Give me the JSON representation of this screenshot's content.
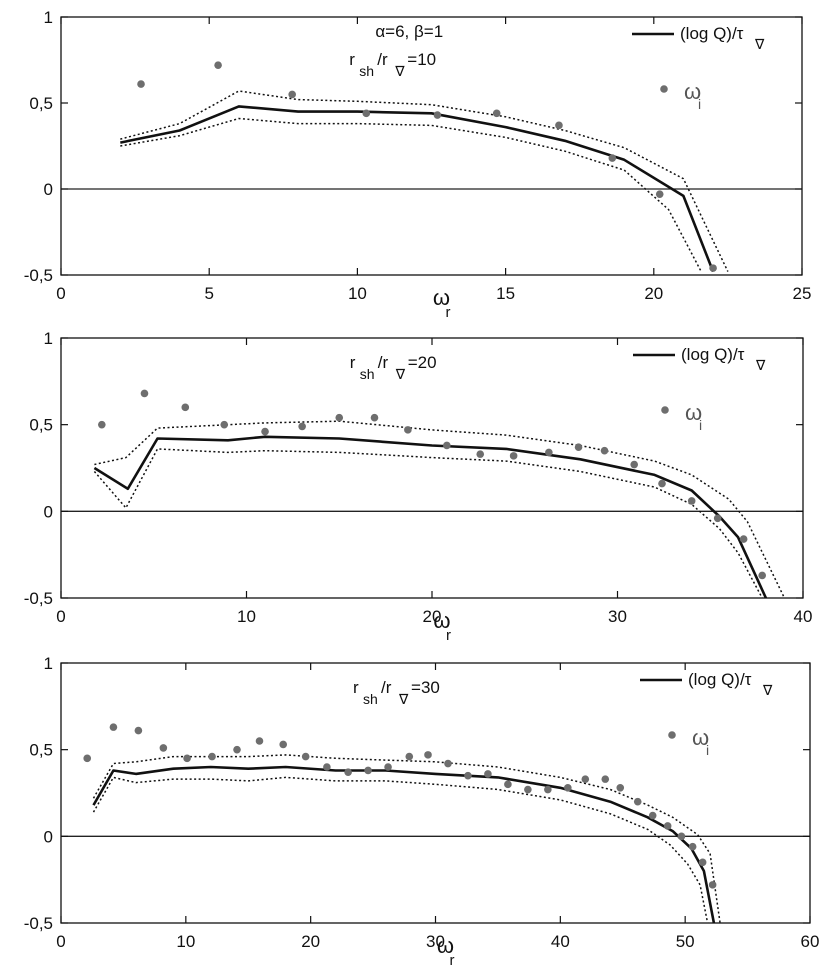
{
  "chart_data": [
    {
      "type": "line",
      "xlim": [
        0,
        25
      ],
      "ylim": [
        -0.5,
        1
      ],
      "xticks": [
        0,
        5,
        10,
        15,
        20,
        25
      ],
      "yticks": [
        -0.5,
        0,
        0.5,
        1
      ],
      "xtick_labels": [
        "0",
        "5",
        "10",
        "15",
        "20",
        "25"
      ],
      "ytick_labels": [
        "-0,5",
        "0",
        "0,5",
        "1"
      ],
      "xlabel": "ω",
      "xlabel_sub": "r",
      "annotations": [
        "α=6, β=1"
      ],
      "ratio_label": {
        "r1": "r",
        "s1": "sh",
        "r2": "/r",
        "s2": "∇",
        "value": "=10"
      },
      "legend": {
        "line_label": "(log Q)/τ",
        "line_sub": "∇",
        "marker_label": "ω",
        "marker_sub": "i"
      },
      "series": [
        {
          "name": "(log Q)/τ∇",
          "style": "solid",
          "x": [
            2,
            4,
            6,
            8,
            10,
            12.5,
            15,
            17,
            19,
            21,
            22
          ],
          "y": [
            0.27,
            0.34,
            0.48,
            0.45,
            0.45,
            0.44,
            0.36,
            0.28,
            0.17,
            -0.04,
            -0.48
          ]
        },
        {
          "name": "upper bound",
          "style": "dotted",
          "x": [
            2,
            4,
            6,
            8,
            10,
            12.5,
            15,
            17,
            19,
            21,
            22.5
          ],
          "y": [
            0.29,
            0.38,
            0.57,
            0.52,
            0.51,
            0.49,
            0.42,
            0.34,
            0.24,
            0.06,
            -0.48
          ]
        },
        {
          "name": "lower bound",
          "style": "dotted",
          "x": [
            2,
            4,
            6,
            8,
            10,
            12.5,
            15,
            17,
            19,
            20.5,
            21.6
          ],
          "y": [
            0.25,
            0.31,
            0.41,
            0.38,
            0.38,
            0.37,
            0.3,
            0.22,
            0.11,
            -0.12,
            -0.48
          ]
        },
        {
          "name": "ωi",
          "style": "markers",
          "x": [
            2.7,
            5.3,
            7.8,
            10.3,
            12.7,
            14.7,
            16.8,
            18.6,
            20.2,
            22
          ],
          "y": [
            0.61,
            0.72,
            0.55,
            0.44,
            0.43,
            0.44,
            0.37,
            0.18,
            -0.03,
            -0.46
          ]
        }
      ]
    },
    {
      "type": "line",
      "xlim": [
        0,
        40
      ],
      "ylim": [
        -0.5,
        1
      ],
      "xticks": [
        0,
        10,
        20,
        30,
        40
      ],
      "yticks": [
        -0.5,
        0,
        0.5,
        1
      ],
      "xtick_labels": [
        "0",
        "10",
        "20",
        "30",
        "40"
      ],
      "ytick_labels": [
        "-0,5",
        "0",
        "0,5",
        "1"
      ],
      "xlabel": "ω",
      "xlabel_sub": "r",
      "annotations": [],
      "ratio_label": {
        "r1": "r",
        "s1": "sh",
        "r2": "/r",
        "s2": "∇",
        "value": "=20"
      },
      "legend": {
        "line_label": "(log Q)/τ",
        "line_sub": "∇",
        "marker_label": "ω",
        "marker_sub": "i"
      },
      "series": [
        {
          "name": "(log Q)/τ∇",
          "style": "solid",
          "x": [
            1.8,
            3.6,
            5.2,
            9,
            11,
            15,
            20,
            24,
            28,
            32,
            34,
            35.5,
            36.5,
            38
          ],
          "y": [
            0.25,
            0.13,
            0.42,
            0.41,
            0.43,
            0.42,
            0.38,
            0.36,
            0.3,
            0.21,
            0.12,
            -0.03,
            -0.15,
            -0.5
          ]
        },
        {
          "name": "upper bound",
          "style": "dotted",
          "x": [
            1.8,
            3.5,
            5.2,
            9,
            11,
            15,
            20,
            24,
            28,
            32,
            34,
            36,
            37,
            39
          ],
          "y": [
            0.27,
            0.31,
            0.48,
            0.5,
            0.51,
            0.52,
            0.47,
            0.44,
            0.38,
            0.29,
            0.21,
            0.07,
            -0.06,
            -0.5
          ]
        },
        {
          "name": "lower bound",
          "style": "dotted",
          "x": [
            1.8,
            3.5,
            5.2,
            9,
            11,
            15,
            20,
            24,
            28,
            32,
            34,
            35.5,
            36.5,
            37.8
          ],
          "y": [
            0.23,
            0.02,
            0.36,
            0.34,
            0.35,
            0.34,
            0.31,
            0.29,
            0.23,
            0.14,
            0.04,
            -0.1,
            -0.24,
            -0.5
          ]
        },
        {
          "name": "ωi",
          "style": "markers",
          "x": [
            2.2,
            4.5,
            6.7,
            8.8,
            11,
            13,
            15,
            16.9,
            18.7,
            20.8,
            22.6,
            24.4,
            26.3,
            27.9,
            29.3,
            30.9,
            32.4,
            34,
            35.4,
            36.8,
            37.8
          ],
          "y": [
            0.5,
            0.68,
            0.6,
            0.5,
            0.46,
            0.49,
            0.54,
            0.54,
            0.47,
            0.38,
            0.33,
            0.32,
            0.34,
            0.37,
            0.35,
            0.27,
            0.16,
            0.06,
            -0.04,
            -0.16,
            -0.37
          ]
        }
      ]
    },
    {
      "type": "line",
      "xlim": [
        0,
        60
      ],
      "ylim": [
        -0.5,
        1
      ],
      "xticks": [
        0,
        10,
        20,
        30,
        40,
        50,
        60
      ],
      "yticks": [
        -0.5,
        0,
        0.5,
        1
      ],
      "xtick_labels": [
        "0",
        "10",
        "20",
        "30",
        "40",
        "50",
        "60"
      ],
      "ytick_labels": [
        "-0,5",
        "0",
        "0,5",
        "1"
      ],
      "xlabel": "ω",
      "xlabel_sub": "r",
      "annotations": [],
      "ratio_label": {
        "r1": "r",
        "s1": "sh",
        "r2": "/r",
        "s2": "∇",
        "value": "=30"
      },
      "legend": {
        "line_label": "(log Q)/τ",
        "line_sub": "∇",
        "marker_label": "ω",
        "marker_sub": "i"
      },
      "series": [
        {
          "name": "(log Q)/τ∇",
          "style": "solid",
          "x": [
            2.6,
            4.2,
            6,
            9,
            12,
            15,
            18,
            22,
            26,
            30,
            35,
            40,
            44,
            47,
            49,
            50.5,
            51.5,
            52.3
          ],
          "y": [
            0.18,
            0.38,
            0.36,
            0.39,
            0.4,
            0.39,
            0.4,
            0.38,
            0.38,
            0.36,
            0.34,
            0.28,
            0.2,
            0.11,
            0.03,
            -0.07,
            -0.2,
            -0.5
          ]
        },
        {
          "name": "upper bound",
          "style": "dotted",
          "x": [
            2.6,
            4.2,
            6,
            9,
            12,
            15,
            18,
            22,
            26,
            30,
            35,
            40,
            44,
            47,
            49,
            51,
            52,
            52.8
          ],
          "y": [
            0.22,
            0.42,
            0.43,
            0.46,
            0.46,
            0.46,
            0.47,
            0.45,
            0.44,
            0.43,
            0.4,
            0.34,
            0.27,
            0.18,
            0.11,
            0.01,
            -0.1,
            -0.5
          ]
        },
        {
          "name": "lower bound",
          "style": "dotted",
          "x": [
            2.6,
            4.2,
            6,
            9,
            12,
            15,
            18,
            22,
            26,
            30,
            35,
            40,
            44,
            47,
            48.8,
            50.2,
            51.2,
            51.8
          ],
          "y": [
            0.14,
            0.34,
            0.31,
            0.33,
            0.33,
            0.32,
            0.34,
            0.32,
            0.32,
            0.3,
            0.27,
            0.21,
            0.13,
            0.04,
            -0.05,
            -0.16,
            -0.28,
            -0.5
          ]
        },
        {
          "name": "ωi",
          "style": "markers",
          "x": [
            2.1,
            4.2,
            6.2,
            8.2,
            10.1,
            12.1,
            14.1,
            15.9,
            17.8,
            19.6,
            21.3,
            23,
            24.6,
            26.2,
            27.9,
            29.4,
            31,
            32.6,
            34.2,
            35.8,
            37.4,
            39,
            40.6,
            42,
            43.6,
            44.8,
            46.2,
            47.4,
            48.6,
            49.7,
            50.6,
            51.4,
            52.2
          ],
          "y": [
            0.45,
            0.63,
            0.61,
            0.51,
            0.45,
            0.46,
            0.5,
            0.55,
            0.53,
            0.46,
            0.4,
            0.37,
            0.38,
            0.4,
            0.46,
            0.47,
            0.42,
            0.35,
            0.36,
            0.3,
            0.27,
            0.27,
            0.28,
            0.33,
            0.33,
            0.28,
            0.2,
            0.12,
            0.06,
            0.0,
            -0.06,
            -0.15,
            -0.28
          ]
        }
      ]
    }
  ]
}
